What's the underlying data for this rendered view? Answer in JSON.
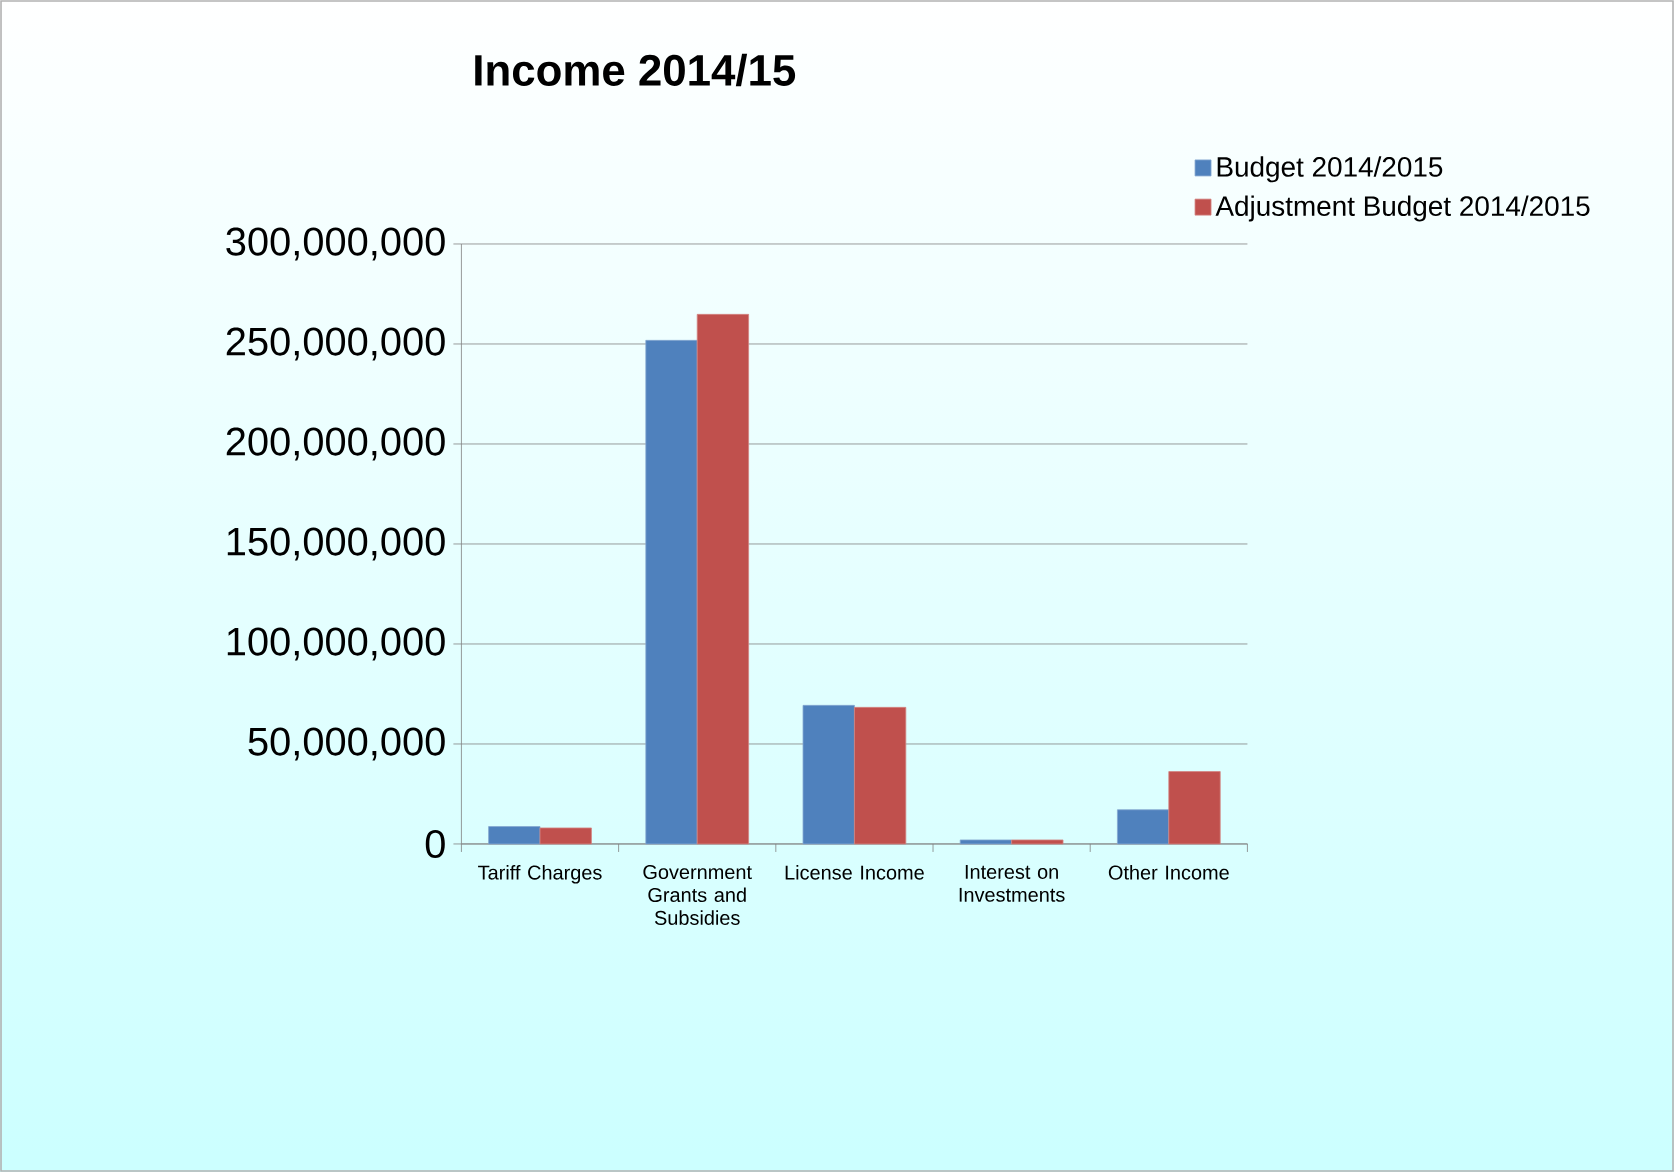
{
  "chart_data": {
    "type": "bar",
    "title": "Income 2014/15",
    "categories": [
      "Tariff Charges",
      "Government Grants and Subsidies",
      "License Income",
      "Interest on Investments",
      "Other Income"
    ],
    "series": [
      {
        "name": "Budget 2014/2015",
        "color": "#4f81bd",
        "values": [
          8700000,
          251800000,
          69300000,
          2000000,
          17100000
        ]
      },
      {
        "name": "Adjustment Budget 2014/2015",
        "color": "#c0504d",
        "values": [
          8000000,
          264800000,
          68300000,
          2000000,
          36200000
        ]
      }
    ],
    "ylim": [
      0,
      300000000
    ],
    "yticks": [
      {
        "value": 0,
        "label": "0"
      },
      {
        "value": 50000000,
        "label": "50,000,000"
      },
      {
        "value": 100000000,
        "label": "100,000,000"
      },
      {
        "value": 150000000,
        "label": "150,000,000"
      },
      {
        "value": 200000000,
        "label": "200,000,000"
      },
      {
        "value": 250000000,
        "label": "250,000,000"
      },
      {
        "value": 300000000,
        "label": "300,000,000"
      }
    ],
    "grid": "y",
    "legend": "top right"
  }
}
